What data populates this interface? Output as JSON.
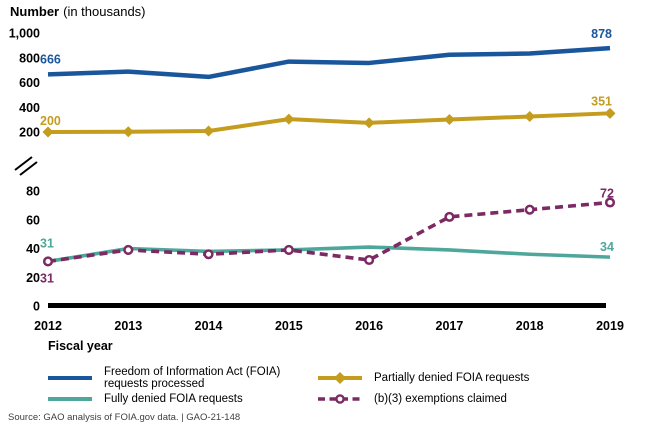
{
  "title": {
    "main": "Number",
    "suffix": "(in thousands)"
  },
  "x_axis_label": "Fiscal year",
  "source": "Source: GAO analysis of FOIA.gov data.  |  GAO-21-148",
  "chart_data": {
    "type": "line",
    "title": "Number (in thousands)",
    "xlabel": "Fiscal year",
    "x": [
      "2012",
      "2013",
      "2014",
      "2015",
      "2016",
      "2017",
      "2018",
      "2019"
    ],
    "y_axis": {
      "broken_axis": true,
      "top": {
        "range": [
          200,
          1000
        ],
        "ticks": [
          1000,
          800,
          600,
          400,
          200
        ],
        "tick_labels": [
          "1,000",
          "800",
          "600",
          "400",
          "200"
        ]
      },
      "bottom": {
        "range": [
          0,
          80
        ],
        "ticks": [
          80,
          60,
          40,
          20,
          0
        ],
        "tick_labels": [
          "80",
          "60",
          "40",
          "20",
          "0"
        ]
      }
    },
    "grid": false,
    "legend_position": "bottom",
    "series": [
      {
        "name": "Freedom of Information Act (FOIA) requests processed",
        "color": "#1a569c",
        "line_style": "solid",
        "marker": "none",
        "scale": "top",
        "values": [
          666,
          688,
          645,
          769,
          758,
          824,
          834,
          878
        ],
        "first_label": "666",
        "last_label": "878"
      },
      {
        "name": "Partially denied FOIA requests",
        "color": "#c49c1e",
        "line_style": "solid",
        "marker": "diamond",
        "scale": "top",
        "values": [
          200,
          202,
          208,
          304,
          274,
          301,
          325,
          351
        ],
        "first_label": "200",
        "last_label": "351"
      },
      {
        "name": "Fully denied FOIA requests",
        "color": "#4fa79c",
        "line_style": "solid",
        "marker": "none",
        "scale": "bottom",
        "values": [
          31,
          40,
          38,
          39,
          41,
          39,
          36,
          34
        ],
        "first_label": "31",
        "last_label": "34"
      },
      {
        "name": "(b)(3) exemptions claimed",
        "color": "#7c2a64",
        "line_style": "dashed",
        "marker": "open-circle",
        "scale": "bottom",
        "values": [
          31,
          39,
          36,
          39,
          32,
          62,
          67,
          72
        ],
        "first_label": "31",
        "last_label": "72"
      }
    ]
  }
}
